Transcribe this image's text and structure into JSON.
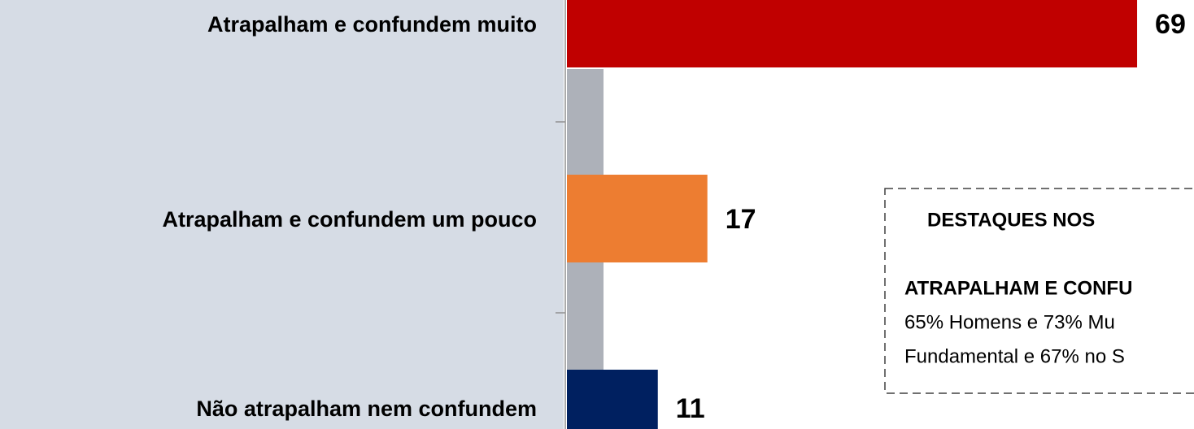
{
  "chart_data": {
    "type": "hbar",
    "categories": [
      "Atrapalham e confundem muito",
      "Atrapalham e confundem um pouco",
      "Não atrapalham nem confundem"
    ],
    "values": [
      69,
      17,
      11
    ],
    "colors": [
      "#c00000",
      "#ed7d31",
      "#002060"
    ],
    "annotation": {
      "title": "DESTAQUES NOS",
      "subtitle": "ATRAPALHAM E CONFU",
      "lines": [
        "65% Homens e 73% Mu",
        "Fundamental e 67% no S"
      ]
    }
  }
}
